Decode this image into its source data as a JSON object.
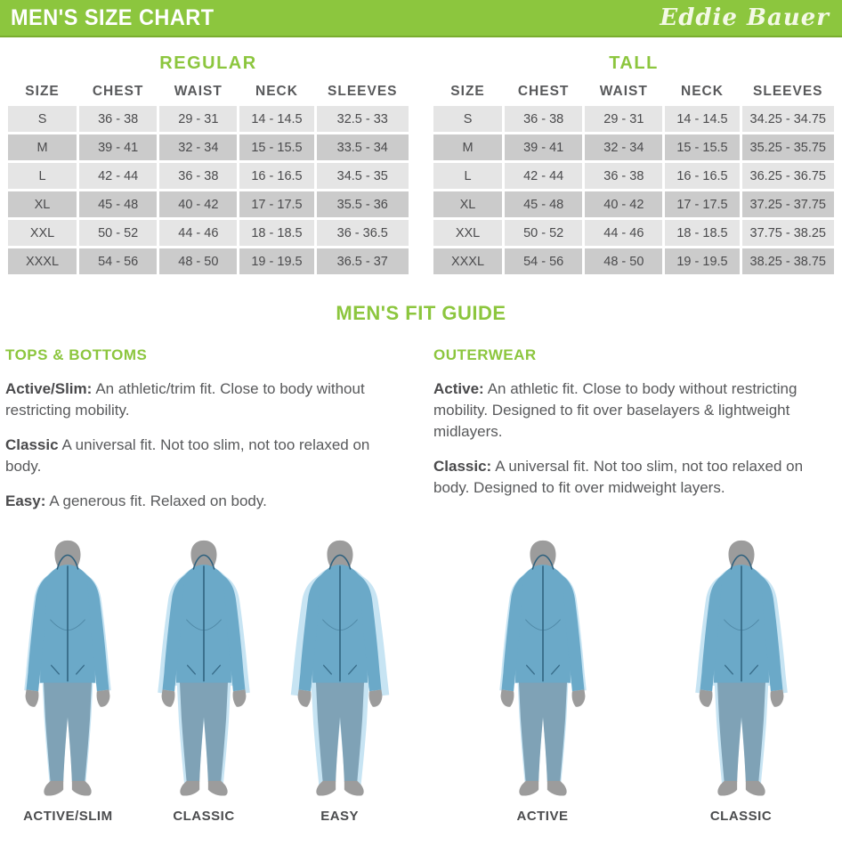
{
  "header": {
    "title": "MEN'S SIZE CHART",
    "brand": "Eddie Bauer"
  },
  "colors": {
    "green": "#8CC63E",
    "green_dark": "#79AD2E",
    "text_dark": "#58595B",
    "row_light": "#E5E5E5",
    "row_dark": "#CBCBCB",
    "jacket_blue": "#6BA9C8",
    "pants_blue": "#7FA2B6",
    "shadow_blue": "#C7E4F3",
    "body_gray": "#9C9C9C",
    "detail_navy": "#2F617E"
  },
  "tables": [
    {
      "title": "REGULAR",
      "columns": [
        "SIZE",
        "CHEST",
        "WAIST",
        "NECK",
        "SLEEVES"
      ],
      "rows": [
        [
          "S",
          "36 - 38",
          "29 - 31",
          "14 - 14.5",
          "32.5 - 33"
        ],
        [
          "M",
          "39 - 41",
          "32 - 34",
          "15 - 15.5",
          "33.5 - 34"
        ],
        [
          "L",
          "42 - 44",
          "36 - 38",
          "16 - 16.5",
          "34.5 - 35"
        ],
        [
          "XL",
          "45 - 48",
          "40 - 42",
          "17 - 17.5",
          "35.5 - 36"
        ],
        [
          "XXL",
          "50 - 52",
          "44 - 46",
          "18 - 18.5",
          "36 - 36.5"
        ],
        [
          "XXXL",
          "54 - 56",
          "48 - 50",
          "19 - 19.5",
          "36.5 - 37"
        ]
      ]
    },
    {
      "title": "TALL",
      "columns": [
        "SIZE",
        "CHEST",
        "WAIST",
        "NECK",
        "SLEEVES"
      ],
      "rows": [
        [
          "S",
          "36 - 38",
          "29 - 31",
          "14 - 14.5",
          "34.25 - 34.75"
        ],
        [
          "M",
          "39 - 41",
          "32 - 34",
          "15 - 15.5",
          "35.25 - 35.75"
        ],
        [
          "L",
          "42 - 44",
          "36 - 38",
          "16 - 16.5",
          "36.25 - 36.75"
        ],
        [
          "XL",
          "45 - 48",
          "40 - 42",
          "17 - 17.5",
          "37.25 - 37.75"
        ],
        [
          "XXL",
          "50 - 52",
          "44 - 46",
          "18 - 18.5",
          "37.75 - 38.25"
        ],
        [
          "XXXL",
          "54 - 56",
          "48 - 50",
          "19 - 19.5",
          "38.25 - 38.75"
        ]
      ]
    }
  ],
  "fit_guide": {
    "title": "MEN'S FIT GUIDE",
    "sections": [
      {
        "heading": "TOPS & BOTTOMS",
        "items": [
          {
            "term": "Active/Slim:",
            "desc": "An athletic/trim fit. Close to body without restricting mobility."
          },
          {
            "term": "Classic",
            "desc": "A universal fit. Not too slim, not too relaxed on body."
          },
          {
            "term": "Easy:",
            "desc": "A generous fit. Relaxed on body."
          }
        ]
      },
      {
        "heading": "OUTERWEAR",
        "items": [
          {
            "term": "Active:",
            "desc": "An athletic fit. Close to body without restricting mobility. Designed to fit over baselayers & lightweight midlayers."
          },
          {
            "term": "Classic:",
            "desc": "A universal fit. Not too slim, not too relaxed on body. Designed to fit over midweight layers."
          }
        ]
      }
    ]
  },
  "figures": {
    "groups": [
      {
        "items": [
          {
            "label": "ACTIVE/SLIM",
            "fit": "active-slim"
          },
          {
            "label": "CLASSIC",
            "fit": "classic"
          },
          {
            "label": "EASY",
            "fit": "easy"
          }
        ]
      },
      {
        "items": [
          {
            "label": "ACTIVE",
            "fit": "active"
          },
          {
            "label": "CLASSIC",
            "fit": "classic"
          }
        ]
      }
    ]
  }
}
